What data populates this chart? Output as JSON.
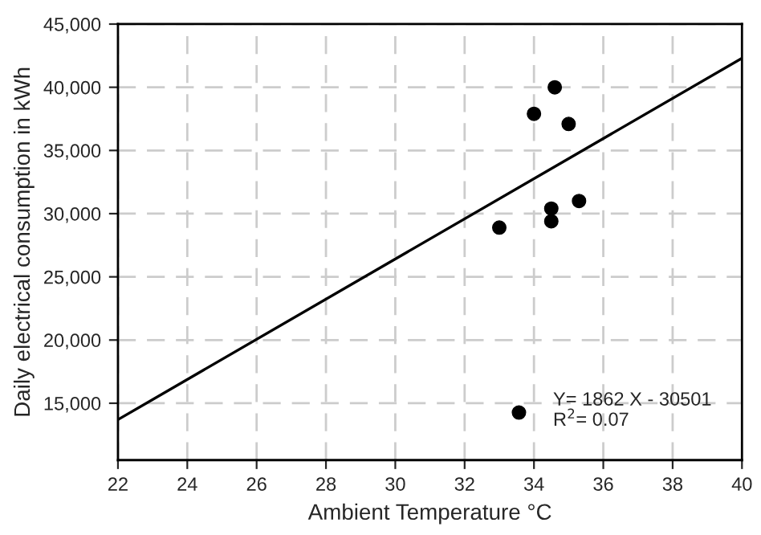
{
  "chart_data": {
    "type": "scatter",
    "xlabel": "Ambient Temperature °C",
    "ylabel": "Daily electrical consumption in kWh",
    "series": [
      {
        "marker": "circle",
        "name": "Y= 1862 X - 30501\nR$^{2}$= 0.07",
        "color": "#000000",
        "x": [
          33.0,
          34.0,
          34.6,
          35.0,
          34.5,
          34.5,
          35.3
        ],
        "values": [
          28900,
          37900,
          40000,
          37100,
          30400,
          29400,
          31000
        ]
      },
      {
        "type": "line",
        "marker": "none",
        "color": "#000000",
        "x": [
          22,
          40
        ],
        "values": [
          13700,
          42300
        ]
      }
    ],
    "xlim": [
      22,
      40
    ],
    "xticks": [
      22,
      24,
      26,
      28,
      30,
      32,
      34,
      36,
      38,
      40
    ],
    "ylim": [
      10500,
      45000
    ],
    "yticks": [
      {
        "value": 15000,
        "label": "15,000"
      },
      {
        "value": 20000,
        "label": "20,000"
      },
      {
        "value": 25000,
        "label": "25,000"
      },
      {
        "value": 30000,
        "label": "30,000"
      },
      {
        "value": 35000,
        "label": "35,000"
      },
      {
        "value": 40000,
        "label": "40,000"
      },
      {
        "value": 45000,
        "label": "45,000"
      }
    ],
    "grid": true,
    "legend": "bottom right"
  }
}
